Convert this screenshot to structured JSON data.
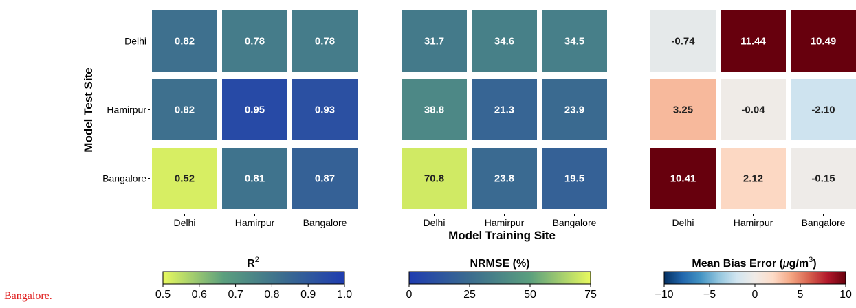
{
  "chart_data": [
    {
      "type": "heatmap",
      "title": "R²",
      "x_categories": [
        "Delhi",
        "Hamirpur",
        "Bangalore"
      ],
      "y_categories": [
        "Delhi",
        "Hamirpur",
        "Bangalore"
      ],
      "values": [
        [
          0.82,
          0.78,
          0.78
        ],
        [
          0.82,
          0.95,
          0.93
        ],
        [
          0.52,
          0.81,
          0.87
        ]
      ],
      "labels": [
        [
          "0.82",
          "0.78",
          "0.78"
        ],
        [
          "0.82",
          "0.95",
          "0.93"
        ],
        [
          "0.52",
          "0.81",
          "0.87"
        ]
      ],
      "colormap": [
        "#e8f95f",
        "#5b9f7e",
        "#3b6c8f",
        "#1f3cb0"
      ],
      "clim": [
        0.5,
        1.0
      ],
      "colorbar_ticks": [
        "0.5",
        "0.6",
        "0.7",
        "0.8",
        "0.9",
        "1.0"
      ]
    },
    {
      "type": "heatmap",
      "title": "NRMSE (%)",
      "x_categories": [
        "Delhi",
        "Hamirpur",
        "Bangalore"
      ],
      "y_categories": [
        "Delhi",
        "Hamirpur",
        "Bangalore"
      ],
      "values": [
        [
          31.7,
          34.6,
          34.5
        ],
        [
          38.8,
          21.3,
          23.9
        ],
        [
          70.8,
          23.8,
          19.5
        ]
      ],
      "labels": [
        [
          "31.7",
          "34.6",
          "34.5"
        ],
        [
          "38.8",
          "21.3",
          "23.9"
        ],
        [
          "70.8",
          "23.8",
          "19.5"
        ]
      ],
      "colormap": [
        "#1f3cb0",
        "#3b6c8f",
        "#5b9f7e",
        "#e8f95f"
      ],
      "clim": [
        0,
        75
      ],
      "colorbar_ticks": [
        "0",
        "25",
        "50",
        "75"
      ]
    },
    {
      "type": "heatmap",
      "title": "Mean Bias Error (μg/m³)",
      "x_categories": [
        "Delhi",
        "Hamirpur",
        "Bangalore"
      ],
      "y_categories": [
        "Delhi",
        "Hamirpur",
        "Bangalore"
      ],
      "values": [
        [
          -0.74,
          11.44,
          10.49
        ],
        [
          3.25,
          -0.04,
          -2.1
        ],
        [
          10.41,
          2.12,
          -0.15
        ]
      ],
      "labels": [
        [
          "-0.74",
          "11.44",
          "10.49"
        ],
        [
          "3.25",
          "-0.04",
          "-2.10"
        ],
        [
          "10.41",
          "2.12",
          "-0.15"
        ]
      ],
      "colormap": [
        "#053061",
        "#2166ac",
        "#4393c3",
        "#92c5de",
        "#d1e5f0",
        "#f0ebe7",
        "#fddbc7",
        "#f4a582",
        "#d6604d",
        "#b2182b",
        "#67000d"
      ],
      "clim": [
        -10,
        10
      ],
      "colorbar_ticks": [
        "−10",
        "−5",
        "0",
        "5",
        "10"
      ]
    }
  ],
  "labels": {
    "ylabel": "Model Test Site",
    "xlabel": "Model Training Site",
    "cbar_r2_base": "R",
    "cbar_r2_sup": "2",
    "cbar_nrmse": "NRMSE (%)",
    "cbar_mbe_prefix": "Mean Bias Error (",
    "cbar_mbe_mu": "μ",
    "cbar_mbe_unit": "g/m",
    "cbar_mbe_sup": "3",
    "cbar_mbe_suffix": ")",
    "footnote": "Bangalore."
  },
  "colors": {
    "dark_text": "#222222",
    "light_text": "#ffffff"
  }
}
